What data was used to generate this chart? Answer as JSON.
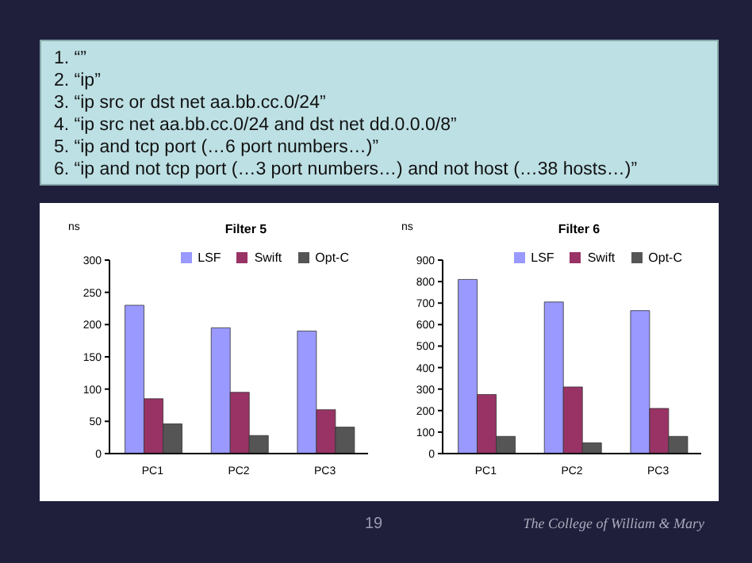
{
  "chart_data": [
    {
      "type": "other",
      "annotations": [
        "1.  “”",
        "2.  “ip”",
        "3.  “ip src or dst net aa.bb.cc.0/24”",
        "4.  “ip src net aa.bb.cc.0/24 and dst net dd.0.0.0/8”",
        "5.  “ip and tcp port (…6 port numbers…)”",
        "6.  “ip and not tcp port (…3 port numbers…) and not host (…38 hosts…)”"
      ]
    },
    {
      "type": "bar",
      "title": "Filter 5",
      "ylabel": "ns",
      "categories": [
        "PC1",
        "PC2",
        "PC3"
      ],
      "series": [
        {
          "name": "LSF",
          "color": "#9999ff",
          "values": [
            230,
            195,
            190
          ]
        },
        {
          "name": "Swift",
          "color": "#993366",
          "values": [
            85,
            95,
            68
          ]
        },
        {
          "name": "Opt-C",
          "color": "#555555",
          "values": [
            46,
            28,
            41
          ]
        }
      ],
      "ylim": [
        0,
        300
      ],
      "yticks": [
        0,
        50,
        100,
        150,
        200,
        250,
        300
      ],
      "grid": false,
      "legend": "top right"
    },
    {
      "type": "bar",
      "title": "Filter 6",
      "ylabel": "ns",
      "categories": [
        "PC1",
        "PC2",
        "PC3"
      ],
      "series": [
        {
          "name": "LSF",
          "color": "#9999ff",
          "values": [
            810,
            705,
            665
          ]
        },
        {
          "name": "Swift",
          "color": "#993366",
          "values": [
            275,
            310,
            210
          ]
        },
        {
          "name": "Opt-C",
          "color": "#555555",
          "values": [
            80,
            50,
            80
          ]
        }
      ],
      "ylim": [
        0,
        900
      ],
      "yticks": [
        0,
        100,
        200,
        300,
        400,
        500,
        600,
        700,
        800,
        900
      ],
      "grid": false,
      "legend": "top right",
      "annotations": [
        "19",
        "The College of William & Mary"
      ]
    }
  ]
}
